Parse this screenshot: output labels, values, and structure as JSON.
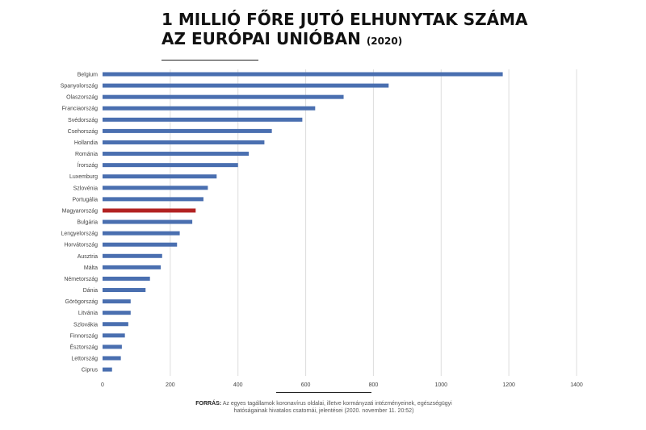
{
  "title": {
    "line1": "1 MILLIÓ FŐRE JUTÓ ELHUNYTAK SZÁMA",
    "line2": "AZ EURÓPAI UNIÓBAN",
    "year": "(2020)"
  },
  "source": {
    "label": "FORRÁS:",
    "text": "Az egyes tagállamok koronavírus oldalai, illetve kormányzati intézményeinek, egészségügyi hatóságainak hivatalos csatornái, jelentései (2020. november 11. 20:52)"
  },
  "colors": {
    "bar": "#4a6fb0",
    "highlight": "#b22222",
    "grid": "#dddddd",
    "text": "#444444"
  },
  "chart_data": {
    "type": "bar",
    "orientation": "horizontal",
    "categories": [
      "Belgium",
      "Spanyolország",
      "Olaszország",
      "Franciaország",
      "Svédország",
      "Csehország",
      "Hollandia",
      "Románia",
      "Írország",
      "Luxemburg",
      "Szlovénia",
      "Portugália",
      "Magyarország",
      "Bulgária",
      "Lengyelország",
      "Horvátország",
      "Ausztria",
      "Málta",
      "Németország",
      "Dánia",
      "Görögország",
      "Litvánia",
      "Szlovákia",
      "Finnország",
      "Észtország",
      "Lettország",
      "Ciprus"
    ],
    "values": [
      1182,
      845,
      712,
      628,
      590,
      500,
      478,
      432,
      400,
      337,
      311,
      298,
      275,
      265,
      228,
      220,
      176,
      172,
      140,
      127,
      83,
      83,
      76,
      66,
      57,
      54,
      28
    ],
    "highlight": "Magyarország",
    "xlim": [
      0,
      1400
    ],
    "xticks": [
      0,
      200,
      400,
      600,
      800,
      1000,
      1200,
      1400
    ],
    "grid": "vertical"
  }
}
